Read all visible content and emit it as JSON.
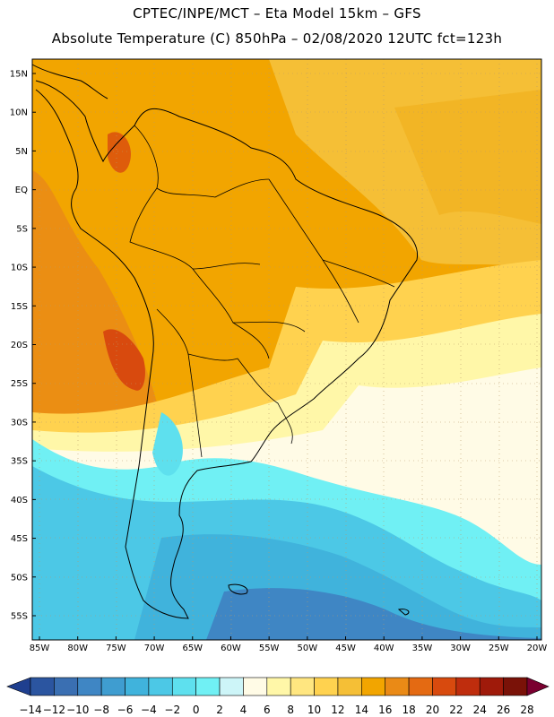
{
  "header": {
    "line1": "CPTEC/INPE/MCT –  Eta Model 15km – GFS",
    "line2": "Absolute Temperature (C) 850hPa – 02/08/2020 12UTC fct=123h"
  },
  "map": {
    "lat_labels": [
      "15N",
      "10N",
      "5N",
      "EQ",
      "5S",
      "10S",
      "15S",
      "20S",
      "25S",
      "30S",
      "35S",
      "40S",
      "45S",
      "50S",
      "55S"
    ],
    "lon_labels": [
      "85W",
      "80W",
      "75W",
      "70W",
      "65W",
      "60W",
      "55W",
      "50W",
      "45W",
      "40W",
      "35W",
      "30W",
      "25W",
      "20W"
    ]
  },
  "colorbar": {
    "ticks": [
      "-14",
      "-12",
      "-10",
      "-8",
      "-6",
      "-4",
      "-2",
      "0",
      "2",
      "4",
      "6",
      "8",
      "10",
      "12",
      "14",
      "16",
      "18",
      "20",
      "22",
      "24",
      "26",
      "28"
    ],
    "colors": [
      "#1f3f8f",
      "#2b55a0",
      "#3a6fb2",
      "#3f86c4",
      "#3f9dd0",
      "#40b3dc",
      "#4cc8e6",
      "#5ee0ee",
      "#70f0f4",
      "#cdf5f8",
      "#fffbe6",
      "#fff7a8",
      "#ffe680",
      "#ffd24f",
      "#f5bf36",
      "#f2a500",
      "#ea8a16",
      "#e46a12",
      "#d84a0e",
      "#bf2d0d",
      "#9f1a0a",
      "#7a1208",
      "#7a0030"
    ]
  }
}
